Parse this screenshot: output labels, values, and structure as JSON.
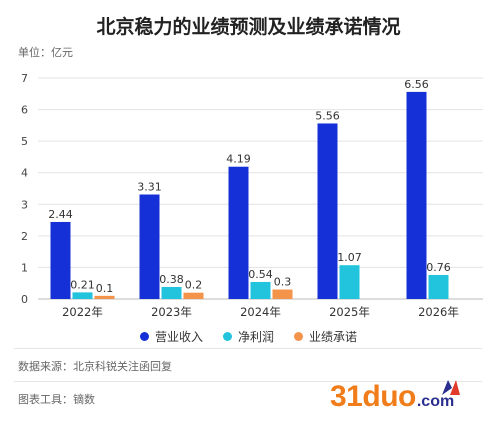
{
  "chart_data": {
    "type": "bar",
    "title": "北京稳力的业绩预测及业绩承诺情况",
    "unit_label": "单位：亿元",
    "categories": [
      "2022年",
      "2023年",
      "2024年",
      "2025年",
      "2026年"
    ],
    "series": [
      {
        "name": "营业收入",
        "color": "#1530d6",
        "values": [
          2.44,
          3.31,
          4.19,
          5.56,
          6.56
        ],
        "labels": [
          "2.44",
          "3.31",
          "4.19",
          "5.56",
          "6.56"
        ]
      },
      {
        "name": "净利润",
        "color": "#22c4dd",
        "values": [
          0.21,
          0.38,
          0.54,
          1.07,
          0.76
        ],
        "labels": [
          "0.21",
          "0.38",
          "0.54",
          "1.07",
          "0.76"
        ]
      },
      {
        "name": "业绩承诺",
        "color": "#f4934a",
        "values": [
          0.1,
          0.2,
          0.3,
          null,
          null
        ],
        "labels": [
          "0.1",
          "0.2",
          "0.3",
          null,
          null
        ]
      }
    ],
    "ylim": [
      0,
      7
    ],
    "yticks": [
      "0",
      "1",
      "2",
      "3",
      "4",
      "5",
      "6",
      "7"
    ],
    "grid": true,
    "legend_position": "bottom"
  },
  "footer": {
    "source": "数据来源：北京科锐关注函回复",
    "tool": "图表工具：镝数"
  },
  "watermark": {
    "main": "31duo",
    "suffix": ".com"
  }
}
